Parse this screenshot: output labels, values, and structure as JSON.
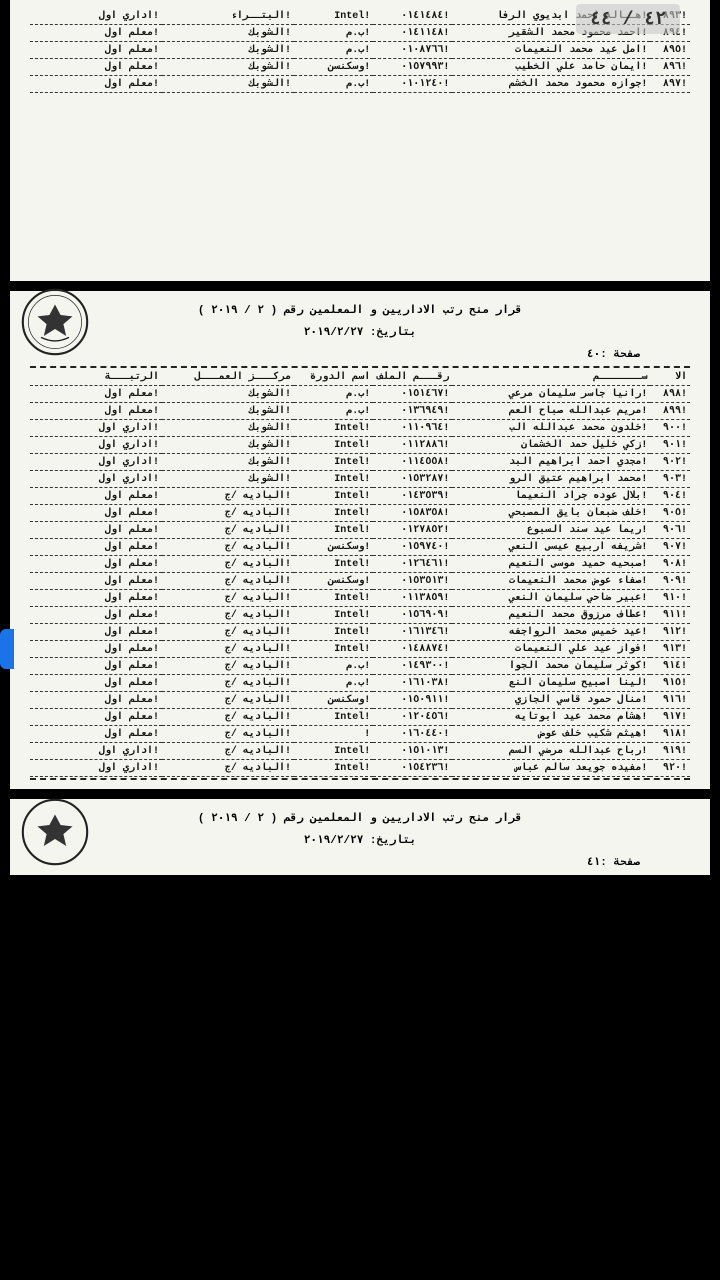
{
  "counter": "٤٢ / ٤٤",
  "title_line1": "قرار منح رتب الاداريين و المعلمين رقم ( ٢ / ٢٠١٩ )",
  "title_line2": "بتاريخ: ٢٠١٩/٢/٢٧",
  "page_label_top": "صفحة :٤٠",
  "page_label_bottom": "صفحة :٤١",
  "cols": {
    "num": "الا",
    "name": "ســـــــم",
    "file": "رقـــم الملف",
    "course": "اسم الدورة",
    "center": "مركـــز العمـــل",
    "rank": "الرتبـــة"
  },
  "top_rows": [
    {
      "n": "٨٩٣",
      "name": "هــاله احمد ابديوي الرفا",
      "file": "٠١٤١٤٨٤",
      "course": "Intel",
      "center": "البتــراء",
      "rank": "اداري اول"
    },
    {
      "n": "٨٩٤",
      "name": "احمد محمود محمد الشقير",
      "file": "٠١٤١١٤٨",
      "course": "ب.م",
      "center": "الشوبك",
      "rank": "معلم اول"
    },
    {
      "n": "٨٩٥",
      "name": "امل عيد محمد النعيمات",
      "file": "٠١٠٨٧٦٦",
      "course": "ب.م",
      "center": "الشوبك",
      "rank": "معلم اول"
    },
    {
      "n": "٨٩٦",
      "name": "ايمان حامد علي الخطيب",
      "file": "٠١٥٧٩٩٣",
      "course": "وسكنسن",
      "center": "الشوبك",
      "rank": "معلم اول"
    },
    {
      "n": "٨٩٧",
      "name": "جوازه محمود محمد الخشم",
      "file": "٠١٠١٢٤٠",
      "course": "ب.م",
      "center": "الشوبك",
      "rank": "معلم اول"
    }
  ],
  "mid_rows": [
    {
      "n": "٨٩٨",
      "name": "رانيا جاسر سليمان مرعي",
      "file": "٠١٥١٤٦٧",
      "course": "ب.م",
      "center": "الشوبك",
      "rank": "معلم اول"
    },
    {
      "n": "٨٩٩",
      "name": "مريم عبدالله صباح العم",
      "file": "٠١٣٦٩٤٩",
      "course": "ب.م",
      "center": "الشوبك",
      "rank": "معلم اول"
    },
    {
      "n": "٩٠٠",
      "name": "خلدون محمد عبدالله الب",
      "file": "٠١١٠٩٦٤",
      "course": "Intel",
      "center": "الشوبك",
      "rank": "اداري اول"
    },
    {
      "n": "٩٠١",
      "name": "زكي خليل حمد الخشمان",
      "file": "٠١١٢٨٨٦",
      "course": "Intel",
      "center": "الشوبك",
      "rank": "اداري اول"
    },
    {
      "n": "٩٠٢",
      "name": "مجدي احمد ابراهيم البد",
      "file": "٠١١٤٥٥٨",
      "course": "Intel",
      "center": "الشوبك",
      "rank": "اداري اول"
    },
    {
      "n": "٩٠٣",
      "name": "محمد ابراهيم عتيق الرو",
      "file": "٠١٥٣٢٨٧",
      "course": "Intel",
      "center": "الشوبك",
      "rank": "اداري اول"
    },
    {
      "n": "٩٠٤",
      "name": "بلال عوده جراد النعيما",
      "file": "٠١٤٣٥٣٩",
      "course": "Intel",
      "center": "الباديه /ج",
      "rank": "معلم اول"
    },
    {
      "n": "٩٠٥",
      "name": "خلف ضبعان بايق المصبحي",
      "file": "٠١٥٨٣٥٨",
      "course": "Intel",
      "center": "الباديه /ج",
      "rank": "معلم اول"
    },
    {
      "n": "٩٠٦",
      "name": "ريما عيد سند السبوع",
      "file": "٠١٢٧٨٥٢",
      "course": "Intel",
      "center": "الباديه /ج",
      "rank": "معلم اول"
    },
    {
      "n": "٩٠٧",
      "name": "شريفه اربيع عيسى النعي",
      "file": "٠١٥٩٧٤٠",
      "course": "وسكنسن",
      "center": "الباديه /ج",
      "rank": "معلم اول"
    },
    {
      "n": "٩٠٨",
      "name": "صبحيه حميد موسى النعيم",
      "file": "٠١٢٦٤٦١",
      "course": "Intel",
      "center": "الباديه /ج",
      "rank": "معلم اول"
    },
    {
      "n": "٩٠٩",
      "name": "صفاء عوض محمد النعيمات",
      "file": "٠١٥٣٥١٣",
      "course": "وسكنسن",
      "center": "الباديه /ج",
      "rank": "معلم اول"
    },
    {
      "n": "٩١٠",
      "name": "عبير ضاحي سليمان النعي",
      "file": "٠١١٣٨٥٩",
      "course": "Intel",
      "center": "الباديه /ج",
      "rank": "معلم اول"
    },
    {
      "n": "٩١١",
      "name": "عطاف مرزوق محمد النعيم",
      "file": "٠١٥٦٩٠٩",
      "course": "Intel",
      "center": "الباديه /ج",
      "rank": "معلم اول"
    },
    {
      "n": "٩١٢",
      "name": "عيد خميس محمد الرواجفه",
      "file": "٠١٦١٣٤٦",
      "course": "Intel",
      "center": "الباديه /ج",
      "rank": "معلم اول"
    },
    {
      "n": "٩١٣",
      "name": "فواز عيد علي النعيمات",
      "file": "٠١٤٨٨٧٤",
      "course": "Intel",
      "center": "الباديه /ج",
      "rank": "معلم اول"
    },
    {
      "n": "٩١٤",
      "name": "كوثر سليمان محمد الجوا",
      "file": "٠١٤٩٣٠٠",
      "course": "ب.م",
      "center": "الباديه /ج",
      "rank": "معلم اول"
    },
    {
      "n": "٩١٥",
      "name": "لينا اصبيح سليمان النع",
      "file": "٠١٦١٠٣٨",
      "course": "ب.م",
      "center": "الباديه /ج",
      "rank": "معلم اول"
    },
    {
      "n": "٩١٦",
      "name": "منال حمود قاسي الجازي",
      "file": "٠١٥٠٩١١",
      "course": "وسكنسن",
      "center": "الباديه /ج",
      "rank": "معلم اول"
    },
    {
      "n": "٩١٧",
      "name": "هشام محمد عيد ابوتايه",
      "file": "٠١٢٠٤٥٦",
      "course": "Intel",
      "center": "الباديه /ج",
      "rank": "معلم اول"
    },
    {
      "n": "٩١٨",
      "name": "هيثم شكيب خلف عوض",
      "file": "٠١٦٠٤٤٠",
      "course": "",
      "center": "الباديه /ج",
      "rank": "معلم اول"
    },
    {
      "n": "٩١٩",
      "name": "رباح عبدالله مرضي السم",
      "file": "٠١٥١٠١٣",
      "course": "Intel",
      "center": "الباديه /ج",
      "rank": "اداري اول"
    },
    {
      "n": "٩٢٠",
      "name": "مفيده جويعد سالم عباس",
      "file": "٠١٥٤٢٣٦",
      "course": "Intel",
      "center": "الباديه /ج",
      "rank": "اداري اول"
    }
  ]
}
